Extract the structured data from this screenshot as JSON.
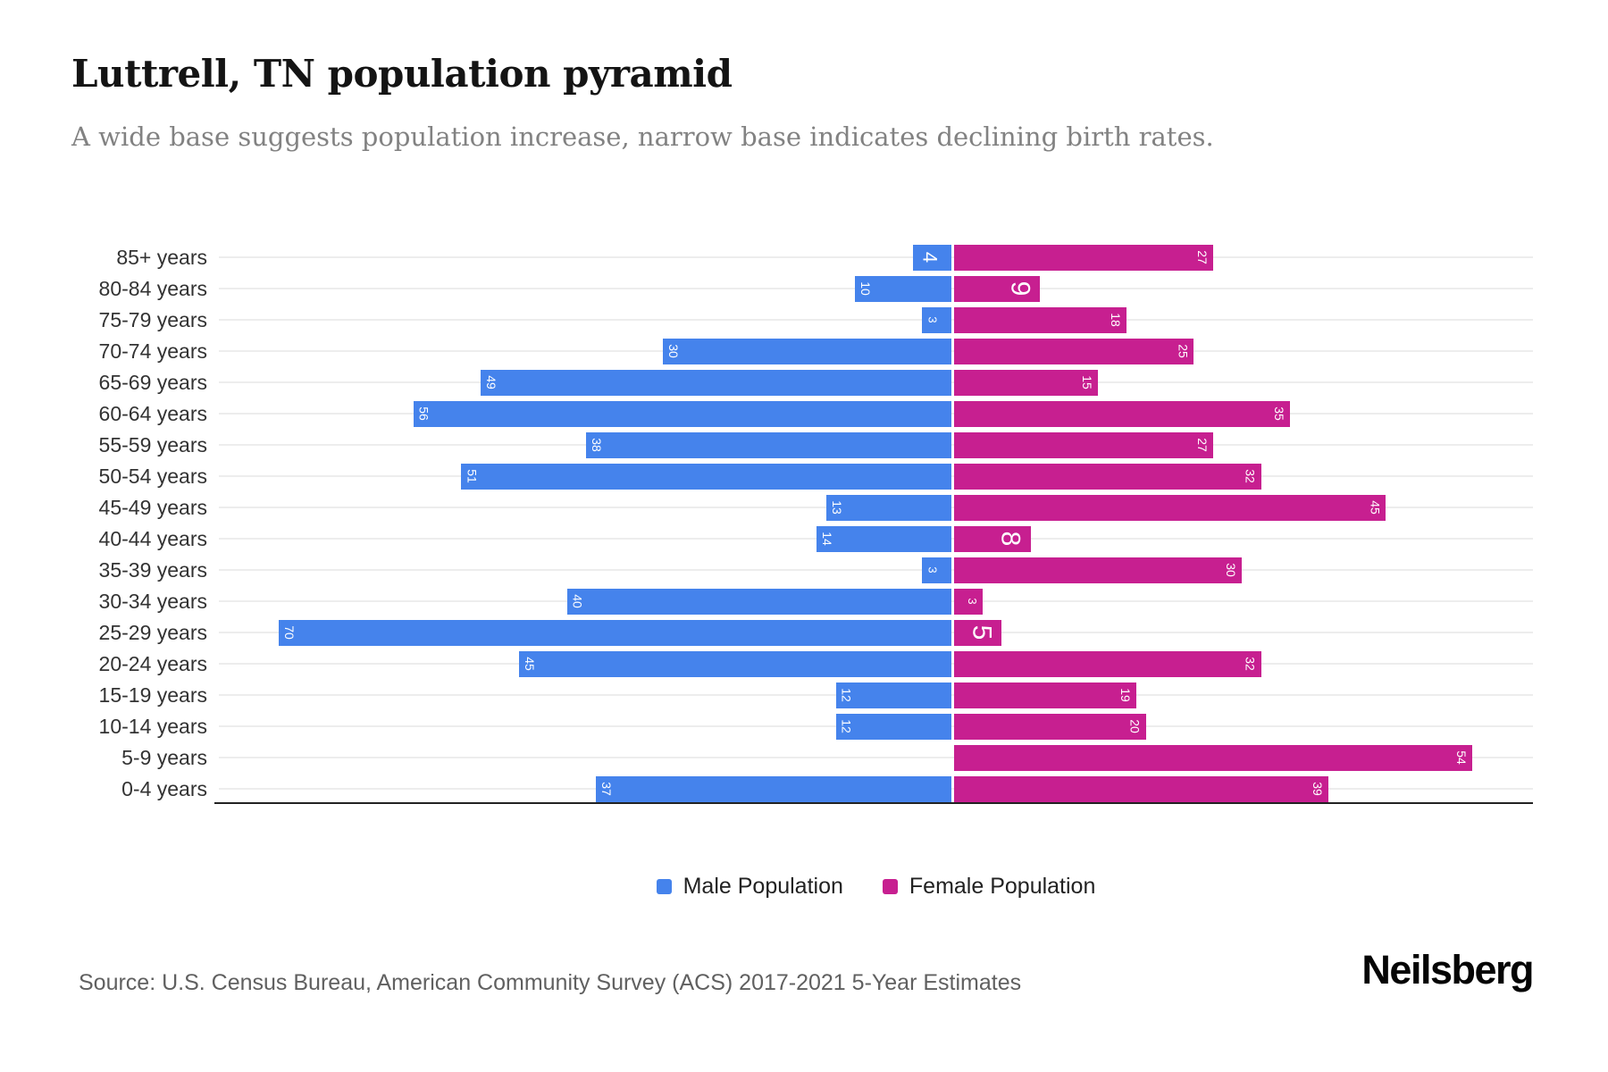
{
  "title": "Luttrell, TN population pyramid",
  "subtitle": "A wide base suggests population increase, narrow base indicates declining birth rates.",
  "source": "Source: U.S. Census Bureau, American Community Survey (ACS) 2017-2021 5-Year Estimates",
  "brand": "Neilsberg",
  "legend": {
    "items": [
      {
        "label": "Male Population",
        "color": "#4583EC"
      },
      {
        "label": "Female Population",
        "color": "#C71F90"
      }
    ]
  },
  "colors": {
    "male": "#4583EC",
    "female": "#C71F90",
    "grid": "#ededed",
    "axis": "#222222",
    "bar_label": "#ffffff"
  },
  "chart_data": {
    "type": "bar",
    "orientation": "horizontal",
    "subtype": "population-pyramid",
    "title": "Luttrell, TN population pyramid",
    "xlabel": "",
    "ylabel": "",
    "grid": "horizontal-row-lines",
    "legend_position": "bottom-center",
    "categories": [
      "85+ years",
      "80-84 years",
      "75-79 years",
      "70-74 years",
      "65-69 years",
      "60-64 years",
      "55-59 years",
      "50-54 years",
      "45-49 years",
      "40-44 years",
      "35-39 years",
      "30-34 years",
      "25-29 years",
      "20-24 years",
      "15-19 years",
      "10-14 years",
      "5-9 years",
      "0-4 years"
    ],
    "series": [
      {
        "name": "Male Population",
        "direction": "left",
        "color": "#4583EC",
        "values": [
          4,
          10,
          3,
          30,
          49,
          56,
          38,
          51,
          13,
          14,
          3,
          40,
          70,
          45,
          12,
          12,
          0,
          37
        ]
      },
      {
        "name": "Female Population",
        "direction": "right",
        "color": "#C71F90",
        "values": [
          27,
          9,
          18,
          25,
          15,
          35,
          27,
          32,
          45,
          8,
          30,
          3,
          5,
          32,
          19,
          20,
          54,
          39
        ]
      }
    ],
    "male_axis_max": 76,
    "female_axis_max": 60
  }
}
